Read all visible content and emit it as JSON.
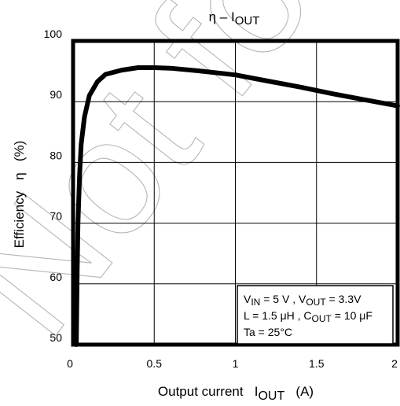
{
  "chart_data": {
    "type": "line",
    "title": "η – IOUT",
    "title_parts": {
      "main": "η – I",
      "sub": "OUT"
    },
    "xlabel": "Output current   IOUT   (A)",
    "xlabel_parts": {
      "pre": "Output current   I",
      "sub": "OUT",
      "post": "   (A)"
    },
    "ylabel": "Efficiency   η   (%)",
    "xlim": [
      0,
      2
    ],
    "ylim": [
      50,
      100
    ],
    "xticks": [
      0,
      0.5,
      1,
      1.5,
      2
    ],
    "xtick_labels": [
      "0",
      "0.5",
      "1",
      "1.5",
      "2"
    ],
    "yticks": [
      50,
      60,
      70,
      80,
      90,
      100
    ],
    "ytick_labels": [
      "50",
      "60",
      "70",
      "80",
      "90",
      "100"
    ],
    "grid": true,
    "series": [
      {
        "x": [
          0.02,
          0.025,
          0.03,
          0.04,
          0.05,
          0.07,
          0.1,
          0.15,
          0.2,
          0.3,
          0.4,
          0.5,
          0.6,
          0.8,
          1.0,
          1.2,
          1.4,
          1.6,
          1.8,
          2.0
        ],
        "y": [
          50,
          62,
          70,
          78,
          83,
          87.5,
          91,
          93.3,
          94.5,
          95.2,
          95.6,
          95.6,
          95.5,
          95.0,
          94.4,
          93.4,
          92.4,
          91.3,
          90.3,
          89.3
        ]
      }
    ],
    "annotation": {
      "lines": [
        "VIN = 5 V , VOUT = 3.3V",
        "L = 1.5 μH , COUT = 10 μF",
        "Ta = 25°C"
      ],
      "line1": {
        "a": "V",
        "a_sub": "IN",
        "b": " = 5 V , V",
        "b_sub": "OUT",
        "c": " = 3.3V"
      },
      "line2": {
        "a": "L = 1.5 μH , C",
        "a_sub": "OUT",
        "b": " = 10 μF"
      },
      "line3": "Ta = 25°C",
      "position": "bottom-right"
    }
  },
  "watermark": "Not for"
}
